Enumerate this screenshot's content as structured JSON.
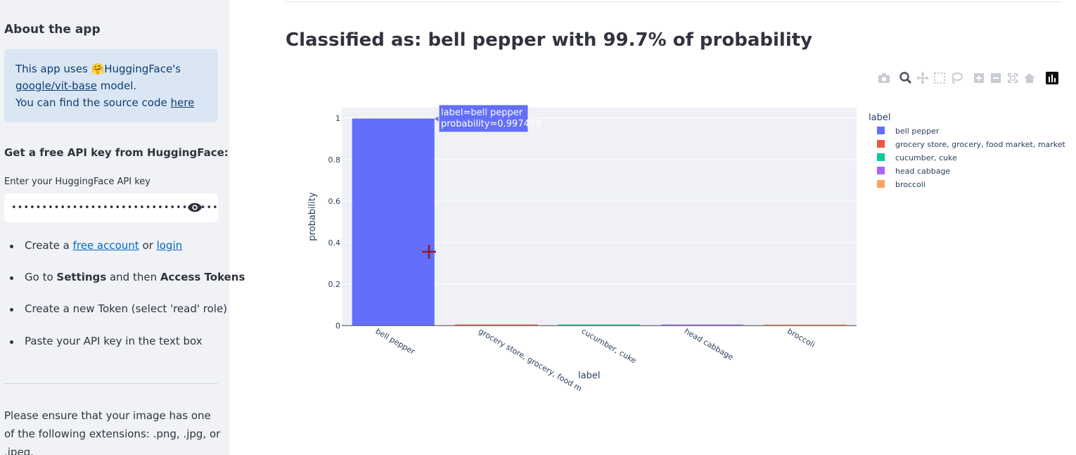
{
  "sidebar": {
    "about_heading": "About the app",
    "info": {
      "line1_pre": "This app uses 🤗HuggingFace's",
      "model_link": "google/vit-base",
      "line2_post": " model.",
      "line3_pre": "You can find the source code ",
      "source_link": "here"
    },
    "api_heading": "Get a free API key from HuggingFace:",
    "api_label": "Enter your HuggingFace API key",
    "api_value": "••••••••••••••••••••••••••••••••••••••",
    "steps": {
      "s1_pre": "Create a ",
      "s1_link1": "free account",
      "s1_mid": " or ",
      "s1_link2": "login",
      "s2_pre": "Go to ",
      "s2_b1": "Settings",
      "s2_mid": " and then ",
      "s2_b2": "Access Tokens",
      "s3": "Create a new Token (select 'read' role)",
      "s4": "Paste your API key in the text box"
    },
    "note": "Please ensure that your image has one of the following extensions: .png, .jpg, or .jpeg."
  },
  "main": {
    "result_title": "Classified as: bell pepper with 99.7% of probability"
  },
  "modebar": [
    "camera-icon",
    "zoom-icon",
    "pan-icon",
    "box-select-icon",
    "lasso-icon",
    "zoom-in-icon",
    "zoom-out-icon",
    "autoscale-icon",
    "reset-axes-icon",
    "plotly-logo-icon"
  ],
  "chart_data": {
    "type": "bar",
    "categories": [
      "bell pepper",
      "grocery store, grocery, food market, market",
      "cucumber, cuke",
      "head cabbage",
      "broccoli"
    ],
    "tick_labels": [
      "bell pepper",
      "grocery store, grocery, food m",
      "cucumber, cuke",
      "head cabbage",
      "broccoli"
    ],
    "values": [
      0.997459,
      0.001,
      0.0005,
      0.0005,
      0.0005
    ],
    "colors": [
      "#636efa",
      "#ef553b",
      "#00cc96",
      "#ab63fa",
      "#ffa15a"
    ],
    "xlabel": "label",
    "ylabel": "probability",
    "ylim": [
      0,
      1.05
    ],
    "yticks": [
      0,
      0.2,
      0.4,
      0.6,
      0.8,
      1
    ],
    "ytick_labels": [
      "0",
      "0.2",
      "0.4",
      "0.6",
      "0.8",
      "1"
    ],
    "legend_title": "label",
    "legend_position": "right",
    "grid": true,
    "hover": {
      "line1": "label=bell pepper",
      "line2": "probability=0.997459"
    }
  }
}
